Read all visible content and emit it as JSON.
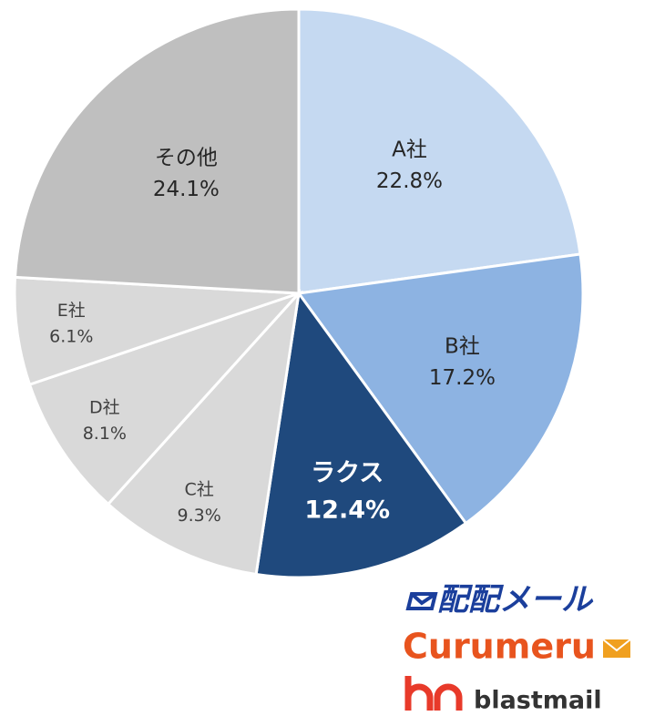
{
  "chart_data": {
    "type": "pie",
    "categories": [
      "A社",
      "B社",
      "ラクス",
      "C社",
      "D社",
      "E社",
      "その他"
    ],
    "values": [
      22.8,
      17.2,
      12.4,
      9.3,
      8.1,
      6.1,
      24.1
    ],
    "value_labels": [
      "22.8%",
      "17.2%",
      "12.4%",
      "9.3%",
      "8.1%",
      "6.1%",
      "24.1%"
    ],
    "colors": [
      "#c5d9f1",
      "#8db3e2",
      "#1f497d",
      "#d9d9d9",
      "#d9d9d9",
      "#d9d9d9",
      "#bfbfbf"
    ]
  },
  "logos": [
    "配配メール",
    "Curumeru",
    "blastmail"
  ]
}
